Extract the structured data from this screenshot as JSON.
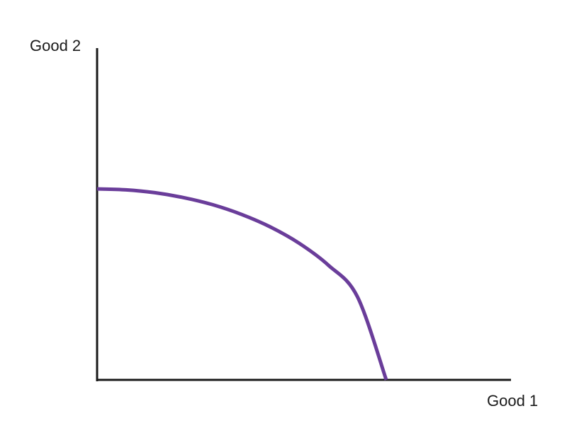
{
  "chart_data": {
    "type": "line",
    "title": "",
    "xlabel": "Good 1",
    "ylabel": "Good 2",
    "grid": false,
    "ticks": false,
    "xlim": [
      0,
      1
    ],
    "ylim": [
      0,
      1
    ],
    "series": [
      {
        "color": "#6a3d9a",
        "x": [
          0.0,
          0.1,
          0.2,
          0.3,
          0.4,
          0.5,
          0.6,
          0.7,
          0.8,
          0.9,
          1.0
        ],
        "y": [
          1.0,
          0.995,
          0.98,
          0.954,
          0.917,
          0.866,
          0.8,
          0.714,
          0.6,
          0.436,
          0.0
        ]
      }
    ],
    "axis_color": "#1a1a1a"
  }
}
